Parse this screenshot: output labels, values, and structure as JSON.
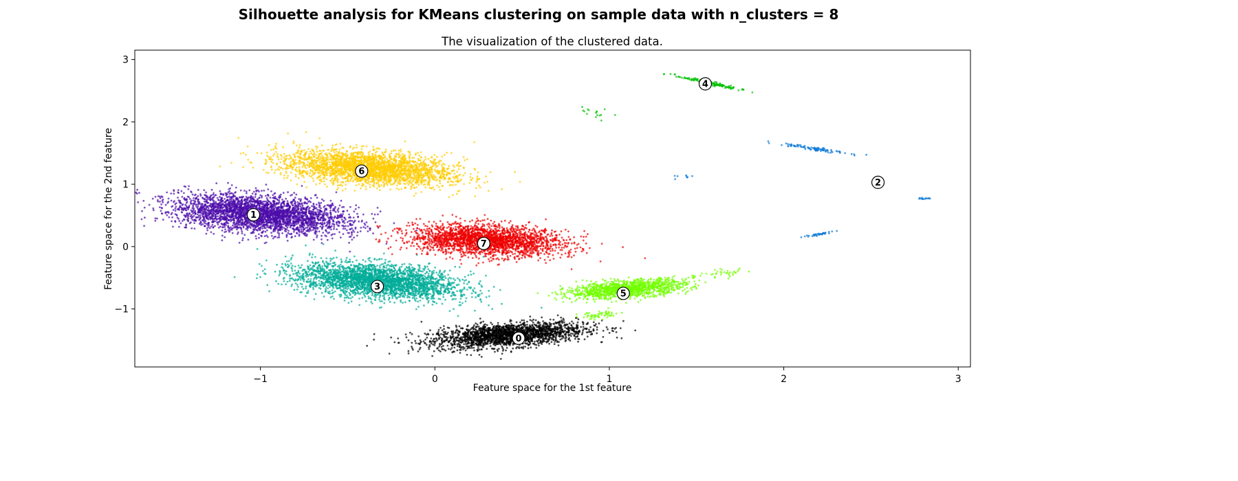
{
  "chart_data": {
    "type": "scatter",
    "suptitle": "Silhouette analysis for KMeans clustering on sample data with n_clusters = 8",
    "title": "The visualization of the clustered data.",
    "xlabel": "Feature space for the 1st feature",
    "ylabel": "Feature space for the 2nd feature",
    "xlim": [
      -1.72,
      3.07
    ],
    "ylim": [
      -1.93,
      3.15
    ],
    "xticks": [
      -1,
      0,
      1,
      2,
      3
    ],
    "yticks": [
      -1,
      0,
      1,
      2,
      3
    ],
    "xtick_labels": [
      "−1",
      "0",
      "1",
      "2",
      "3"
    ],
    "ytick_labels": [
      "−1",
      "0",
      "1",
      "2",
      "3"
    ],
    "grid": false,
    "legend": "none",
    "clusters": [
      {
        "label": "0",
        "color": "#000000",
        "center": [
          0.48,
          -1.47
        ],
        "blobs": [
          {
            "cx": 0.42,
            "cy": -1.42,
            "sx": 0.22,
            "sy": 0.09,
            "rot": 13,
            "n": 2200
          }
        ]
      },
      {
        "label": "1",
        "color": "#4B0BAA",
        "center": [
          -1.04,
          0.51
        ],
        "blobs": [
          {
            "cx": -1.0,
            "cy": 0.52,
            "sx": 0.26,
            "sy": 0.14,
            "rot": -17,
            "n": 3200
          }
        ]
      },
      {
        "label": "2",
        "color": "#0A78D6",
        "center": [
          2.54,
          1.03
        ],
        "blobs": [
          {
            "cx": 2.16,
            "cy": 1.58,
            "sx": 0.1,
            "sy": 0.015,
            "rot": -22,
            "n": 90
          },
          {
            "cx": 2.19,
            "cy": 0.19,
            "sx": 0.05,
            "sy": 0.01,
            "rot": 28,
            "n": 35
          },
          {
            "cx": 2.8,
            "cy": 0.77,
            "sx": 0.03,
            "sy": 0.006,
            "rot": 8,
            "n": 14
          },
          {
            "cx": 1.42,
            "cy": 1.12,
            "sx": 0.06,
            "sy": 0.02,
            "rot": 10,
            "n": 8
          }
        ]
      },
      {
        "label": "3",
        "color": "#00AD98",
        "center": [
          -0.33,
          -0.64
        ],
        "blobs": [
          {
            "cx": -0.33,
            "cy": -0.55,
            "sx": 0.24,
            "sy": 0.13,
            "rot": -18,
            "n": 3000
          }
        ]
      },
      {
        "label": "4",
        "color": "#00C000",
        "center": [
          1.55,
          2.61
        ],
        "blobs": [
          {
            "cx": 1.58,
            "cy": 2.62,
            "sx": 0.11,
            "sy": 0.012,
            "rot": -31,
            "n": 140
          },
          {
            "cx": 0.9,
            "cy": 2.14,
            "sx": 0.08,
            "sy": 0.07,
            "rot": -30,
            "n": 16
          }
        ]
      },
      {
        "label": "5",
        "color": "#72FF00",
        "center": [
          1.08,
          -0.75
        ],
        "blobs": [
          {
            "cx": 1.1,
            "cy": -0.68,
            "sx": 0.17,
            "sy": 0.065,
            "rot": 14,
            "n": 1300
          },
          {
            "cx": 1.62,
            "cy": -0.44,
            "sx": 0.14,
            "sy": 0.03,
            "rot": 20,
            "n": 40
          },
          {
            "cx": 0.95,
            "cy": -1.1,
            "sx": 0.06,
            "sy": 0.03,
            "rot": 15,
            "n": 60
          }
        ]
      },
      {
        "label": "6",
        "color": "#FFCC00",
        "center": [
          -0.42,
          1.21
        ],
        "blobs": [
          {
            "cx": -0.38,
            "cy": 1.26,
            "sx": 0.25,
            "sy": 0.13,
            "rot": -15,
            "n": 2800
          }
        ]
      },
      {
        "label": "7",
        "color": "#EE0000",
        "center": [
          0.28,
          0.05
        ],
        "blobs": [
          {
            "cx": 0.3,
            "cy": 0.1,
            "sx": 0.22,
            "sy": 0.12,
            "rot": -11,
            "n": 2400
          }
        ]
      }
    ]
  }
}
